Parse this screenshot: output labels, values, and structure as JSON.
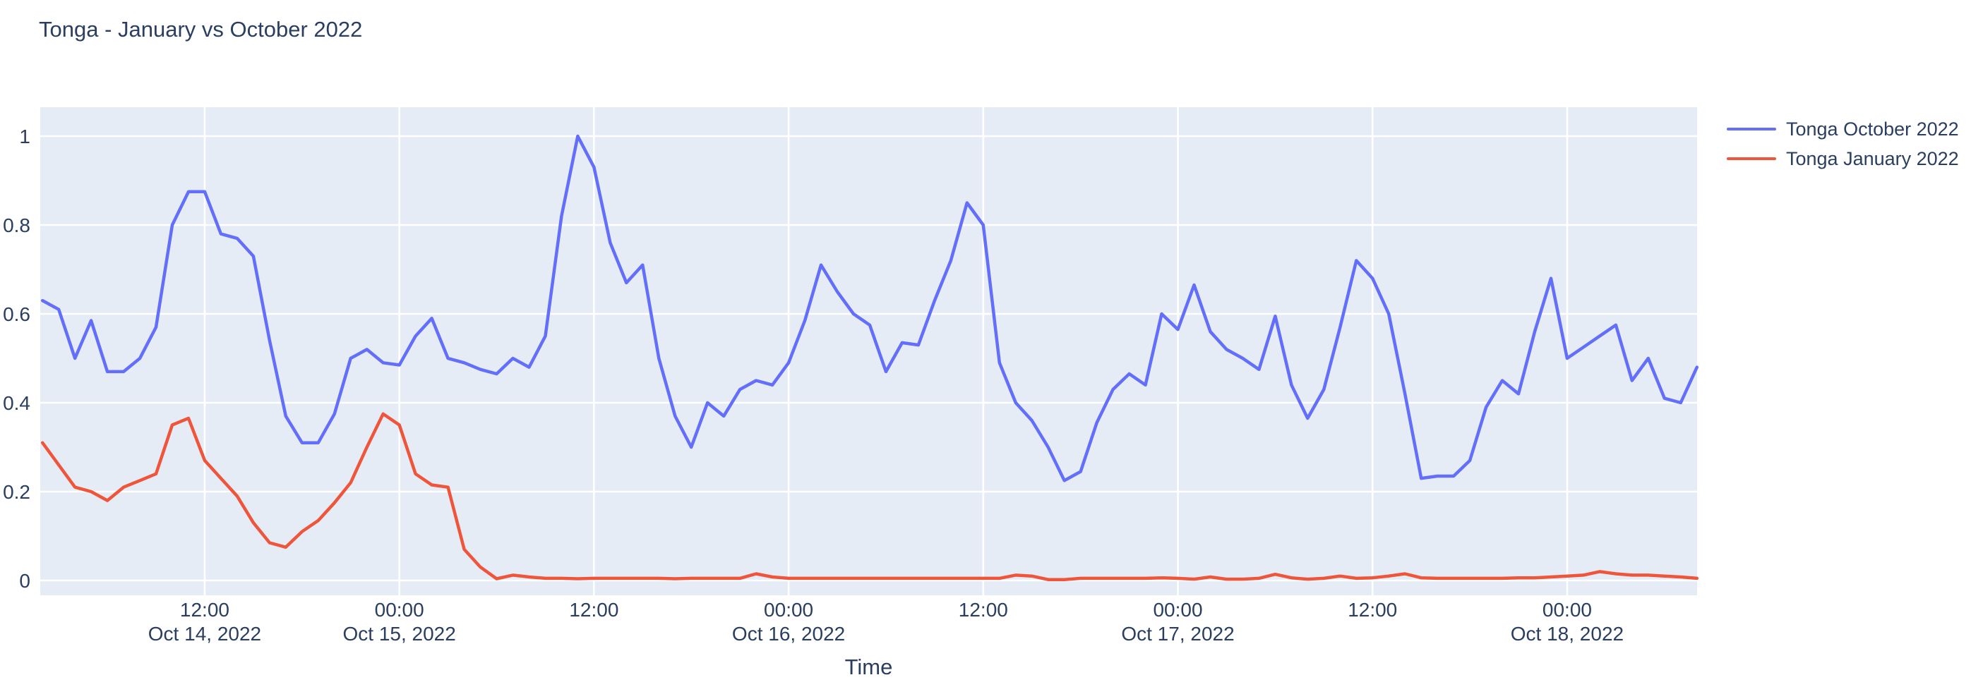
{
  "page_title": "Tonga - January vs October 2022",
  "colors": {
    "accent_blue": "#636EFA",
    "accent_red": "#EF553B",
    "text": "#2A3F5F",
    "plot_bg": "#E5ECF6",
    "grid": "#FFFFFF",
    "paper_bg": "#FFFFFF"
  },
  "legend": {
    "position": "right",
    "items": [
      {
        "label": "Tonga October 2022",
        "color": "#636EFA"
      },
      {
        "label": "Tonga January 2022",
        "color": "#EF553B"
      }
    ]
  },
  "chart_data": {
    "type": "line",
    "title": "Tonga - January vs October 2022",
    "xlabel": "Time",
    "ylabel": "",
    "x_start": "2022-10-14 02:00",
    "x_step_hours": 1,
    "n_points": 103,
    "ylim": [
      -0.033,
      1.065
    ],
    "grid": true,
    "legend_position": "right",
    "y_axis": {
      "ticks": [
        {
          "value": 0,
          "label": "0"
        },
        {
          "value": 0.2,
          "label": "0.2"
        },
        {
          "value": 0.4,
          "label": "0.4"
        },
        {
          "value": 0.6,
          "label": "0.6"
        },
        {
          "value": 0.8,
          "label": "0.8"
        },
        {
          "value": 1,
          "label": "1"
        }
      ]
    },
    "x_axis": {
      "ticks": [
        {
          "i": 10,
          "time": "12:00",
          "date": "Oct 14, 2022"
        },
        {
          "i": 22,
          "time": "00:00",
          "date": "Oct 15, 2022"
        },
        {
          "i": 34,
          "time": "12:00",
          "date": ""
        },
        {
          "i": 46,
          "time": "00:00",
          "date": "Oct 16, 2022"
        },
        {
          "i": 58,
          "time": "12:00",
          "date": ""
        },
        {
          "i": 70,
          "time": "00:00",
          "date": "Oct 17, 2022"
        },
        {
          "i": 82,
          "time": "12:00",
          "date": ""
        },
        {
          "i": 94,
          "time": "00:00",
          "date": "Oct 18, 2022"
        }
      ]
    },
    "series": [
      {
        "id": "october",
        "name": "Tonga October 2022",
        "color": "#636EFA",
        "values": [
          0.63,
          0.61,
          0.5,
          0.585,
          0.47,
          0.47,
          0.5,
          0.57,
          0.8,
          0.875,
          0.875,
          0.78,
          0.77,
          0.73,
          0.54,
          0.37,
          0.31,
          0.31,
          0.375,
          0.5,
          0.52,
          0.49,
          0.485,
          0.55,
          0.59,
          0.5,
          0.49,
          0.475,
          0.465,
          0.5,
          0.48,
          0.55,
          0.82,
          1.0,
          0.93,
          0.76,
          0.67,
          0.71,
          0.5,
          0.37,
          0.3,
          0.4,
          0.37,
          0.43,
          0.45,
          0.44,
          0.49,
          0.585,
          0.71,
          0.65,
          0.6,
          0.575,
          0.47,
          0.535,
          0.53,
          0.63,
          0.72,
          0.85,
          0.8,
          0.49,
          0.4,
          0.36,
          0.3,
          0.225,
          0.245,
          0.355,
          0.43,
          0.465,
          0.44,
          0.6,
          0.565,
          0.665,
          0.56,
          0.52,
          0.5,
          0.475,
          0.595,
          0.44,
          0.365,
          0.43,
          0.57,
          0.72,
          0.68,
          0.6,
          0.42,
          0.23,
          0.235,
          0.235,
          0.27,
          0.39,
          0.45,
          0.42,
          0.56,
          0.68,
          0.5,
          0.525,
          0.55,
          0.575,
          0.45,
          0.5,
          0.41,
          0.4,
          0.48
        ]
      },
      {
        "id": "january",
        "name": "Tonga January 2022",
        "color": "#EF553B",
        "values": [
          0.31,
          0.26,
          0.21,
          0.2,
          0.18,
          0.21,
          0.225,
          0.24,
          0.35,
          0.365,
          0.27,
          0.23,
          0.19,
          0.13,
          0.085,
          0.075,
          0.11,
          0.135,
          0.175,
          0.22,
          0.3,
          0.375,
          0.35,
          0.24,
          0.215,
          0.21,
          0.07,
          0.03,
          0.004,
          0.012,
          0.008,
          0.005,
          0.005,
          0.004,
          0.005,
          0.005,
          0.005,
          0.005,
          0.005,
          0.004,
          0.005,
          0.005,
          0.005,
          0.005,
          0.015,
          0.008,
          0.005,
          0.005,
          0.005,
          0.005,
          0.005,
          0.005,
          0.005,
          0.005,
          0.005,
          0.005,
          0.005,
          0.005,
          0.005,
          0.005,
          0.012,
          0.01,
          0.002,
          0.002,
          0.005,
          0.005,
          0.005,
          0.005,
          0.005,
          0.006,
          0.005,
          0.003,
          0.008,
          0.003,
          0.003,
          0.005,
          0.014,
          0.006,
          0.003,
          0.005,
          0.01,
          0.005,
          0.006,
          0.01,
          0.015,
          0.006,
          0.005,
          0.005,
          0.005,
          0.005,
          0.005,
          0.006,
          0.006,
          0.008,
          0.01,
          0.012,
          0.02,
          0.015,
          0.012,
          0.012,
          0.01,
          0.008,
          0.005
        ]
      }
    ]
  }
}
